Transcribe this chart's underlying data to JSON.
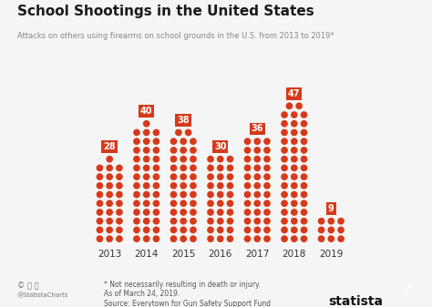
{
  "title": "School Shootings in the United States",
  "subtitle": "Attacks on others using firearms on school grounds in the U.S. from 2013 to 2019*",
  "years": [
    "2013",
    "2014",
    "2015",
    "2016",
    "2017",
    "2018",
    "2019"
  ],
  "values": [
    28,
    40,
    38,
    30,
    36,
    47,
    9
  ],
  "dot_color": "#d63a1a",
  "dot_cols": 3,
  "background_color": "#f5f5f5",
  "title_color": "#1a1a1a",
  "subtitle_color": "#888888",
  "label_bg": "#d63a1a",
  "label_text_color": "#ffffff",
  "year_label_color": "#333333",
  "footer_note1": "* Not necessarily resulting in death or injury.",
  "footer_note2": "As of March 24, 2019.",
  "footer_source": "Source: Everytown for Gun Safety Support Fund",
  "footer_credit": "@StatistaCharts",
  "statista_text": "statista"
}
